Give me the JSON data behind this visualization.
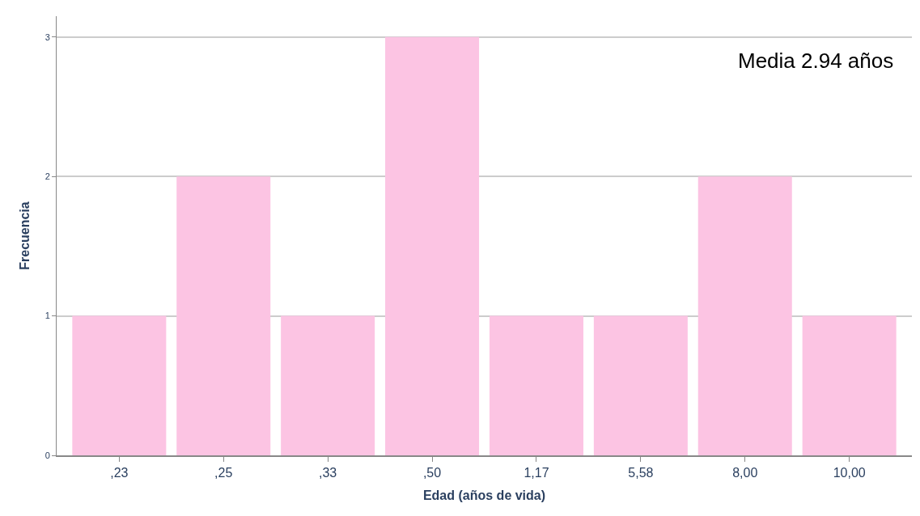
{
  "chart_data": {
    "type": "bar",
    "xlabel": "Edad (años de vida)",
    "ylabel": "Frecuencia",
    "categories": [
      ",23",
      ",25",
      ",33",
      ",50",
      "1,17",
      "5,58",
      "8,00",
      "10,00"
    ],
    "values": [
      1,
      2,
      1,
      3,
      1,
      1,
      2,
      1
    ],
    "color": "#fcc4e3",
    "ylim": [
      0,
      3.15
    ],
    "yticks": [
      0,
      1,
      2,
      3
    ],
    "grid": "y",
    "annotations": [
      "Media 2.94 años"
    ]
  }
}
